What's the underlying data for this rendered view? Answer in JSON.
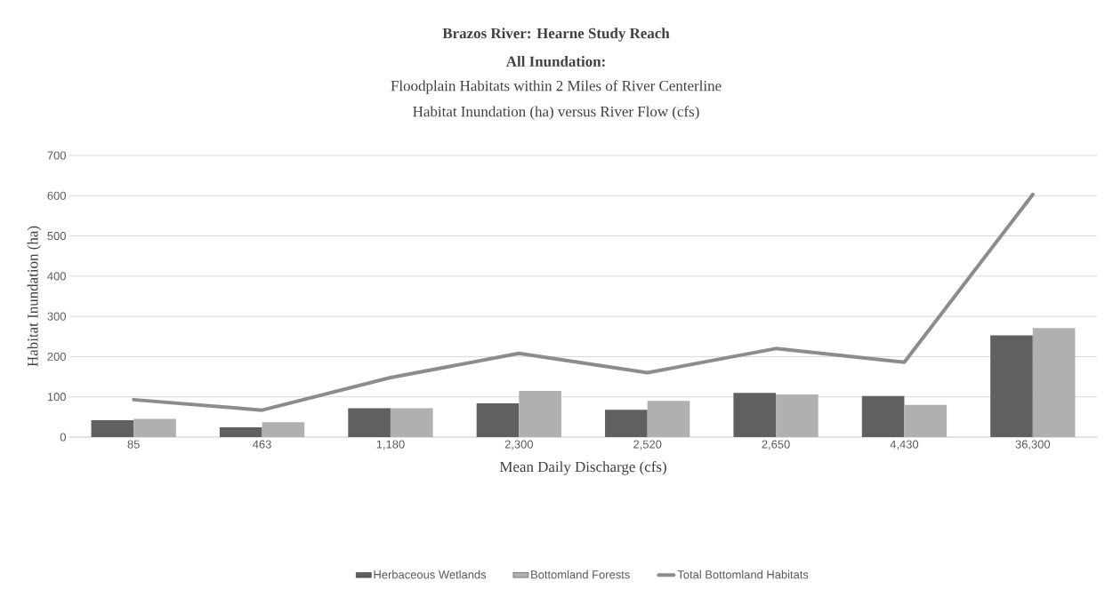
{
  "chart_data": {
    "type": "bar",
    "title": "Brazos River: Hearne Study Reach",
    "subtitle": "All Inundation:",
    "annotations": [
      "Floodplain Habitats within 2 Miles of River Centerline",
      "Habitat Inundation (ha) versus River Flow (cfs)"
    ],
    "xlabel": "Mean Daily Discharge (cfs)",
    "ylabel": "Habitat Inundation (ha)",
    "categories": [
      "85",
      "463",
      "1,180",
      "2,300",
      "2,520",
      "2,650",
      "4,430",
      "36,300"
    ],
    "series": [
      {
        "name": "Herbaceous Wetlands",
        "color": "#606060",
        "values": [
          42,
          24,
          72,
          84,
          68,
          110,
          102,
          253
        ]
      },
      {
        "name": "Bottomland Forests",
        "color": "#b0b0b0",
        "values": [
          45,
          37,
          72,
          115,
          90,
          106,
          80,
          271
        ]
      },
      {
        "name": "Total Bottomland Habitats",
        "type": "line",
        "color": "#8c8c8c",
        "values": [
          93,
          67,
          148,
          208,
          160,
          220,
          186,
          603
        ]
      }
    ],
    "ylim": [
      0,
      700
    ],
    "yticks": [
      0,
      100,
      200,
      300,
      400,
      500,
      600,
      700
    ],
    "grid": "y",
    "legend": "bottom"
  }
}
